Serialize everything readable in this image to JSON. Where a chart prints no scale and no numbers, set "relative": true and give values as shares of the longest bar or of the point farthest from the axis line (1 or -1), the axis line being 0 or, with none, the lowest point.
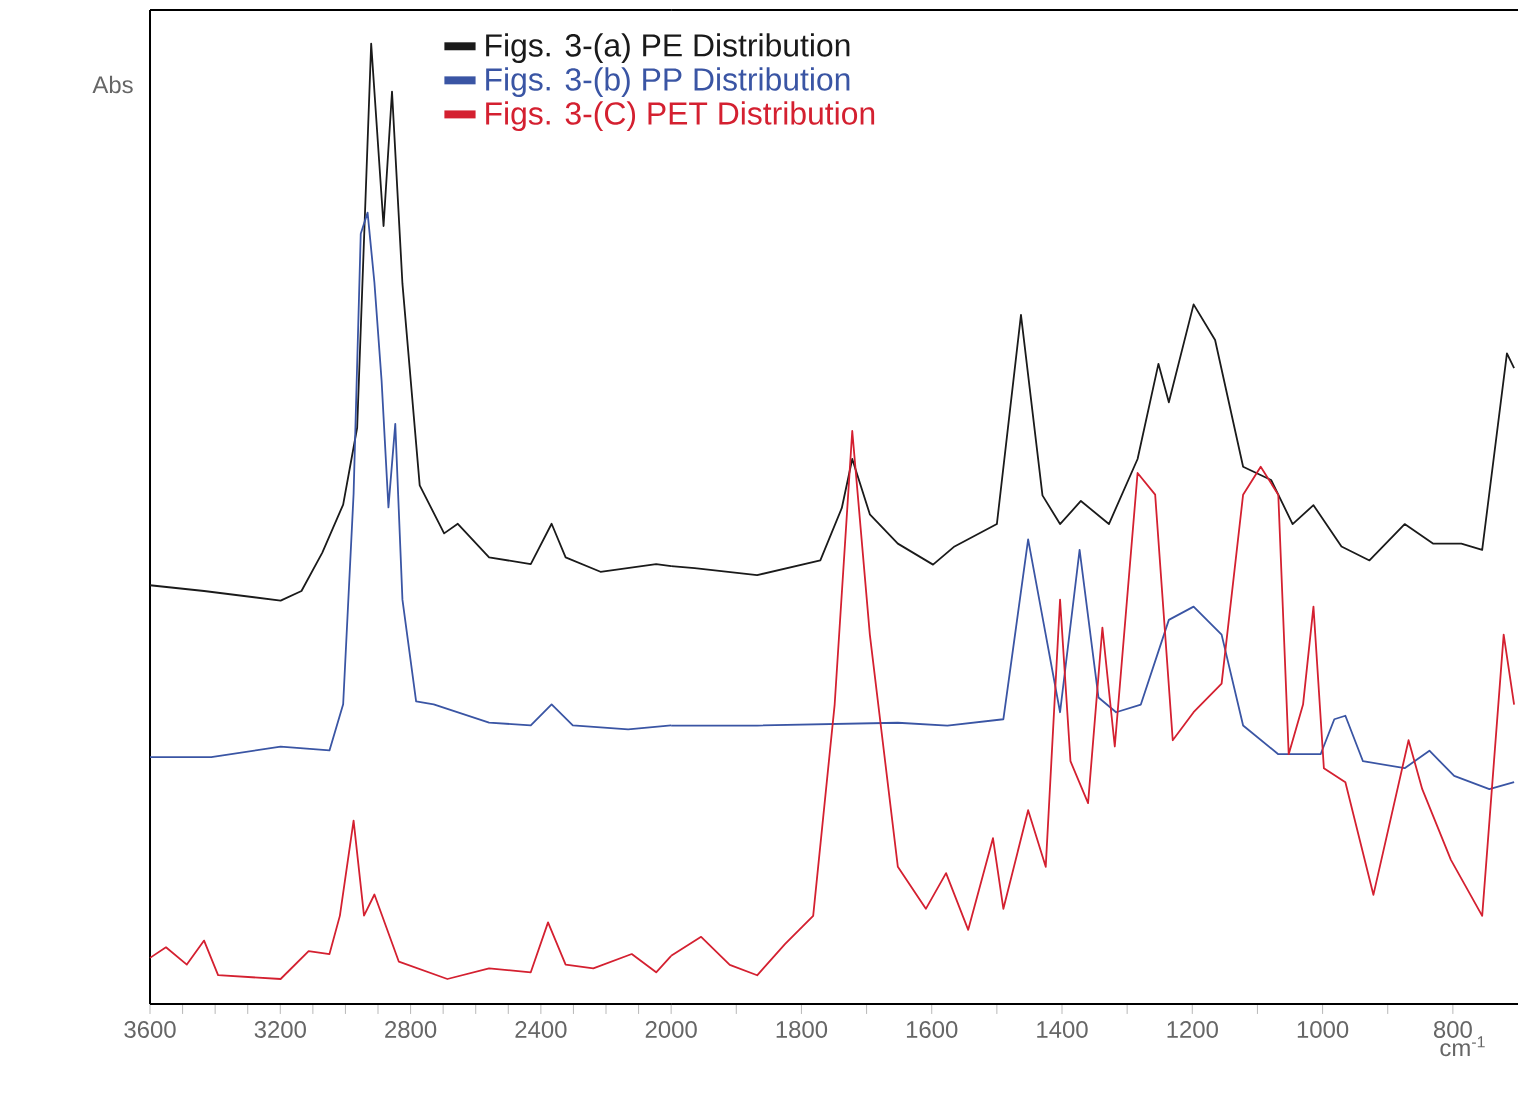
{
  "chart_data": [
    {
      "type": "line",
      "relative": true,
      "ylabel": "Abs",
      "xlim": [
        3600,
        2000
      ],
      "xticks": [
        3600,
        {
          "value": 3500,
          "label": null
        },
        {
          "value": 3400,
          "label": null
        },
        {
          "value": 3300,
          "label": null
        },
        3200,
        {
          "value": 3100,
          "label": null
        },
        {
          "value": 3000,
          "label": null
        },
        {
          "value": 2900,
          "label": null
        },
        2800,
        {
          "value": 2700,
          "label": null
        },
        {
          "value": 2600,
          "label": null
        },
        {
          "value": 2500,
          "label": null
        },
        2400,
        {
          "value": 2300,
          "label": null
        },
        {
          "value": 2200,
          "label": null
        },
        {
          "value": 2100,
          "label": null
        },
        2000
      ],
      "tick_labels": "x",
      "legend": "top",
      "line_style": "solid",
      "series": [
        {
          "name": "Figs. 3-(a) PE Distribution",
          "color": "#1a1a1a",
          "x": [
            3600,
            3434,
            3199,
            3135,
            3071,
            3007,
            2964,
            2921,
            2883,
            2857,
            2825,
            2772,
            2697,
            2655,
            2559,
            2431,
            2367,
            2324,
            2217,
            2046,
            2000
          ],
          "values": [
            0.436,
            0.43,
            0.42,
            0.43,
            0.47,
            0.52,
            0.6,
            1.0,
            0.81,
            0.95,
            0.75,
            0.54,
            0.49,
            0.5,
            0.465,
            0.458,
            0.5,
            0.465,
            0.45,
            0.458,
            0.456
          ]
        },
        {
          "name": "Figs. 3-(b) PP Distribution",
          "color": "#3a55a4",
          "x": [
            3600,
            3412,
            3199,
            3049,
            3007,
            2975,
            2953,
            2932,
            2911,
            2889,
            2868,
            2847,
            2825,
            2783,
            2729,
            2559,
            2431,
            2367,
            2302,
            2132,
            2000
          ],
          "values": [
            0.257,
            0.257,
            0.268,
            0.264,
            0.312,
            0.531,
            0.802,
            0.824,
            0.751,
            0.649,
            0.517,
            0.604,
            0.421,
            0.315,
            0.312,
            0.293,
            0.29,
            0.312,
            0.29,
            0.286,
            0.29
          ]
        },
        {
          "name": "Figs. 3-(C) PET Distribution",
          "color": "#d42030",
          "x": [
            3600,
            3551,
            3487,
            3434,
            3391,
            3199,
            3113,
            3049,
            3017,
            2975,
            2943,
            2911,
            2836,
            2687,
            2559,
            2431,
            2378,
            2324,
            2239,
            2121,
            2046,
            2000
          ],
          "values": [
            0.048,
            0.059,
            0.041,
            0.066,
            0.03,
            0.026,
            0.055,
            0.052,
            0.092,
            0.191,
            0.092,
            0.114,
            0.044,
            0.026,
            0.037,
            0.033,
            0.085,
            0.041,
            0.037,
            0.052,
            0.033,
            0.05
          ]
        }
      ]
    },
    {
      "type": "line",
      "relative": true,
      "xlabel": "cm$^{-1}$",
      "xlim": [
        2000,
        700
      ],
      "xticks": [
        {
          "value": 1900,
          "label": null
        },
        1800,
        {
          "value": 1700,
          "label": null
        },
        1600,
        {
          "value": 1500,
          "label": null
        },
        1400,
        {
          "value": 1300,
          "label": null
        },
        1200,
        {
          "value": 1100,
          "label": null
        },
        1000,
        {
          "value": 900,
          "label": null
        },
        800
      ],
      "tick_labels": "x",
      "line_style": "solid",
      "series": [
        {
          "color": "#1a1a1a",
          "x": [
            2000,
            1964,
            1868,
            1771,
            1738,
            1722,
            1695,
            1652,
            1598,
            1565,
            1500,
            1463,
            1430,
            1403,
            1371,
            1328,
            1284,
            1252,
            1236,
            1198,
            1165,
            1122,
            1079,
            1046,
            1014,
            971,
            928,
            874,
            830,
            787,
            755,
            717,
            706
          ],
          "values": [
            0.626,
            0.623,
            0.613,
            0.634,
            0.709,
            0.779,
            0.7,
            0.658,
            0.628,
            0.654,
            0.686,
            0.985,
            0.727,
            0.686,
            0.719,
            0.686,
            0.779,
            0.915,
            0.86,
            1,
            0.949,
            0.768,
            0.749,
            0.686,
            0.713,
            0.654,
            0.634,
            0.686,
            0.658,
            0.658,
            0.649,
            0.93,
            0.909
          ]
        },
        {
          "color": "#3a55a4",
          "x": [
            2000,
            1868,
            1652,
            1576,
            1490,
            1452,
            1425,
            1403,
            1373,
            1344,
            1317,
            1279,
            1236,
            1198,
            1155,
            1122,
            1068,
            1003,
            982,
            965,
            938,
            874,
            836,
            798,
            744,
            706
          ],
          "values": [
            0.398,
            0.398,
            0.402,
            0.398,
            0.407,
            0.664,
            0.528,
            0.417,
            0.649,
            0.438,
            0.417,
            0.428,
            0.549,
            0.568,
            0.528,
            0.398,
            0.357,
            0.357,
            0.407,
            0.412,
            0.347,
            0.337,
            0.362,
            0.326,
            0.307,
            0.317
          ]
        },
        {
          "color": "#d42030",
          "x": [
            2000,
            1954,
            1910,
            1868,
            1825,
            1782,
            1749,
            1722,
            1695,
            1652,
            1609,
            1578,
            1544,
            1506,
            1490,
            1452,
            1425,
            1403,
            1387,
            1360,
            1338,
            1319,
            1284,
            1257,
            1230,
            1198,
            1155,
            1122,
            1095,
            1068,
            1052,
            1030,
            1014,
            998,
            965,
            922,
            868,
            847,
            803,
            755,
            722,
            706
          ],
          "values": [
            0.069,
            0.096,
            0.056,
            0.041,
            0.086,
            0.126,
            0.428,
            0.819,
            0.528,
            0.196,
            0.136,
            0.187,
            0.106,
            0.237,
            0.136,
            0.277,
            0.196,
            0.578,
            0.347,
            0.287,
            0.538,
            0.368,
            0.759,
            0.728,
            0.377,
            0.417,
            0.458,
            0.728,
            0.768,
            0.728,
            0.357,
            0.428,
            0.568,
            0.337,
            0.317,
            0.156,
            0.377,
            0.307,
            0.206,
            0.126,
            0.528,
            0.428
          ]
        }
      ]
    }
  ]
}
